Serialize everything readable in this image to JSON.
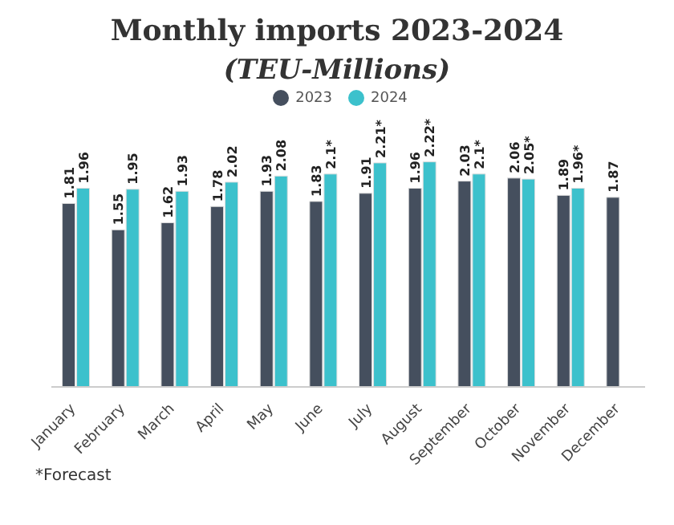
{
  "chart_data": {
    "type": "bar",
    "title": "Monthly imports 2023-2024",
    "subtitle": "(TEU-Millions)",
    "categories": [
      "January",
      "February",
      "March",
      "April",
      "May",
      "June",
      "July",
      "August",
      "September",
      "October",
      "November",
      "December"
    ],
    "series": [
      {
        "name": "2023",
        "color": "#454f5e",
        "values": [
          1.81,
          1.55,
          1.62,
          1.78,
          1.93,
          1.83,
          1.91,
          1.96,
          2.03,
          2.06,
          1.89,
          1.87
        ]
      },
      {
        "name": "2024",
        "color": "#3cc1cc",
        "values": [
          1.96,
          1.95,
          1.93,
          2.02,
          2.08,
          2.1,
          2.21,
          2.22,
          2.1,
          2.05,
          1.96,
          null
        ],
        "value_labels": [
          "1.96",
          "1.95",
          "1.93",
          "2.02",
          "2.08",
          "2.1*",
          "2.21*",
          "2.22*",
          "2.1*",
          "2.05*",
          "1.96*",
          null
        ]
      }
    ],
    "data_labels": true,
    "legend": "top",
    "annotations": [
      "*Forecast"
    ]
  }
}
